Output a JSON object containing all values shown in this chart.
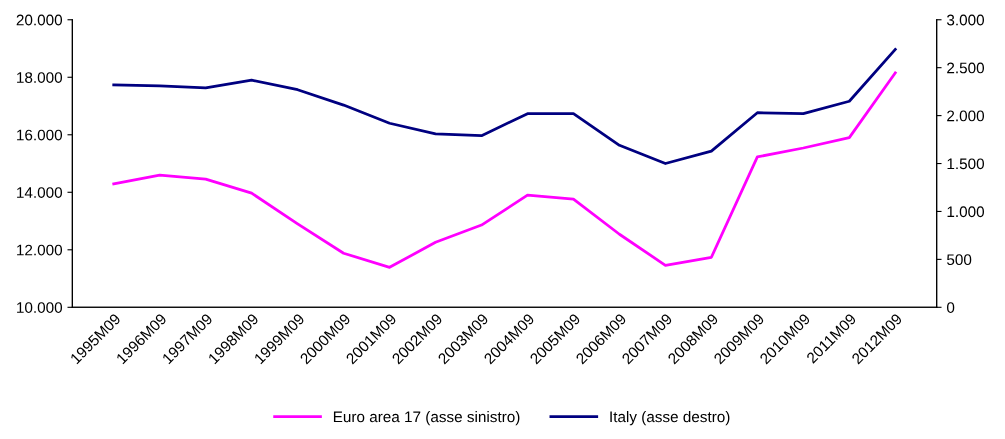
{
  "chart_data": {
    "type": "line",
    "categories": [
      "1995M09",
      "1996M09",
      "1997M09",
      "1998M09",
      "1999M09",
      "2000M09",
      "2001M09",
      "2002M09",
      "2003M09",
      "2004M09",
      "2005M09",
      "2006M09",
      "2007M09",
      "2008M09",
      "2009M09",
      "2010M09",
      "2011M09",
      "2012M09"
    ],
    "series": [
      {
        "name": "Euro area 17 (asse sinistro)",
        "color": "#ff00ff",
        "values": [
          14290,
          14600,
          14460,
          13970,
          12900,
          11880,
          11390,
          12260,
          12860,
          13900,
          13760,
          12540,
          11460,
          11740,
          15230,
          15540,
          15900,
          18150
        ]
      },
      {
        "name": "Italy (asse destro)",
        "color": "#000080",
        "axis": "y2",
        "values": [
          2320,
          2310,
          2290,
          2370,
          2270,
          2110,
          1920,
          1810,
          1790,
          2020,
          2020,
          1690,
          1500,
          1630,
          2030,
          2020,
          2150,
          2690
        ]
      }
    ],
    "ylim": [
      10000,
      20000
    ],
    "yticks": [
      {
        "value": 10000,
        "label": "10.000"
      },
      {
        "value": 12000,
        "label": "12.000"
      },
      {
        "value": 14000,
        "label": "14.000"
      },
      {
        "value": 16000,
        "label": "16.000"
      },
      {
        "value": 18000,
        "label": "18.000"
      },
      {
        "value": 20000,
        "label": "20.000"
      }
    ],
    "y2lim": [
      0,
      3000
    ],
    "y2ticks": [
      0,
      500,
      {
        "value": 1000,
        "label": "1.000"
      },
      {
        "value": 1500,
        "label": "1.500"
      },
      {
        "value": 2000,
        "label": "2.000"
      },
      {
        "value": 2500,
        "label": "2.500"
      },
      {
        "value": 3000,
        "label": "3.000"
      }
    ],
    "grid": false,
    "legend": "bottom",
    "line_style": "solid",
    "marker": "none"
  }
}
